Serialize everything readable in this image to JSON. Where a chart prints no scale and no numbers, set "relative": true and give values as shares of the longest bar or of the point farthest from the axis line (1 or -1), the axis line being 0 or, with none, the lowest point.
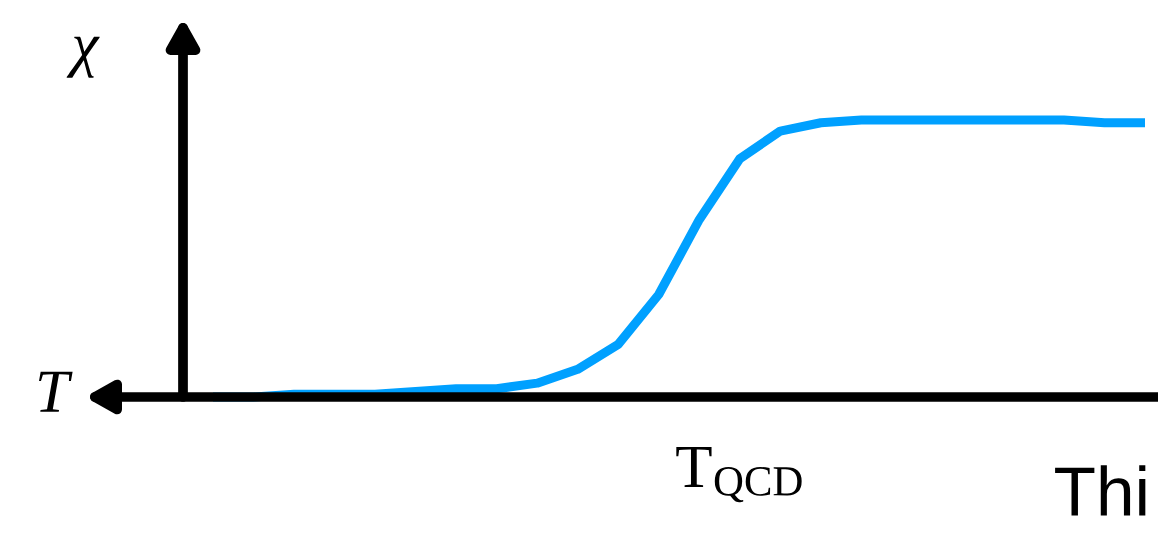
{
  "chart_data": {
    "type": "line",
    "relative": true,
    "xlabel": "T",
    "ylabel": "χ",
    "categories": [
      null,
      null,
      null,
      null,
      null,
      null,
      null,
      null,
      null,
      null,
      null,
      null,
      null,
      null,
      null,
      null,
      null,
      null,
      null,
      null,
      null,
      null,
      null,
      null
    ],
    "series": [
      {
        "color": "#00a0ff",
        "values": [
          0.0,
          0.0,
          0.01,
          0.01,
          0.01,
          0.02,
          0.03,
          0.03,
          0.05,
          0.1,
          0.19,
          0.37,
          0.64,
          0.86,
          0.96,
          0.99,
          1,
          1,
          1,
          1,
          1,
          1,
          0.99,
          0.99
        ]
      }
    ],
    "annotations": [
      "T$_{QCD}$",
      "Thi"
    ],
    "legend": false,
    "marker": "none",
    "line_style": "solid"
  }
}
